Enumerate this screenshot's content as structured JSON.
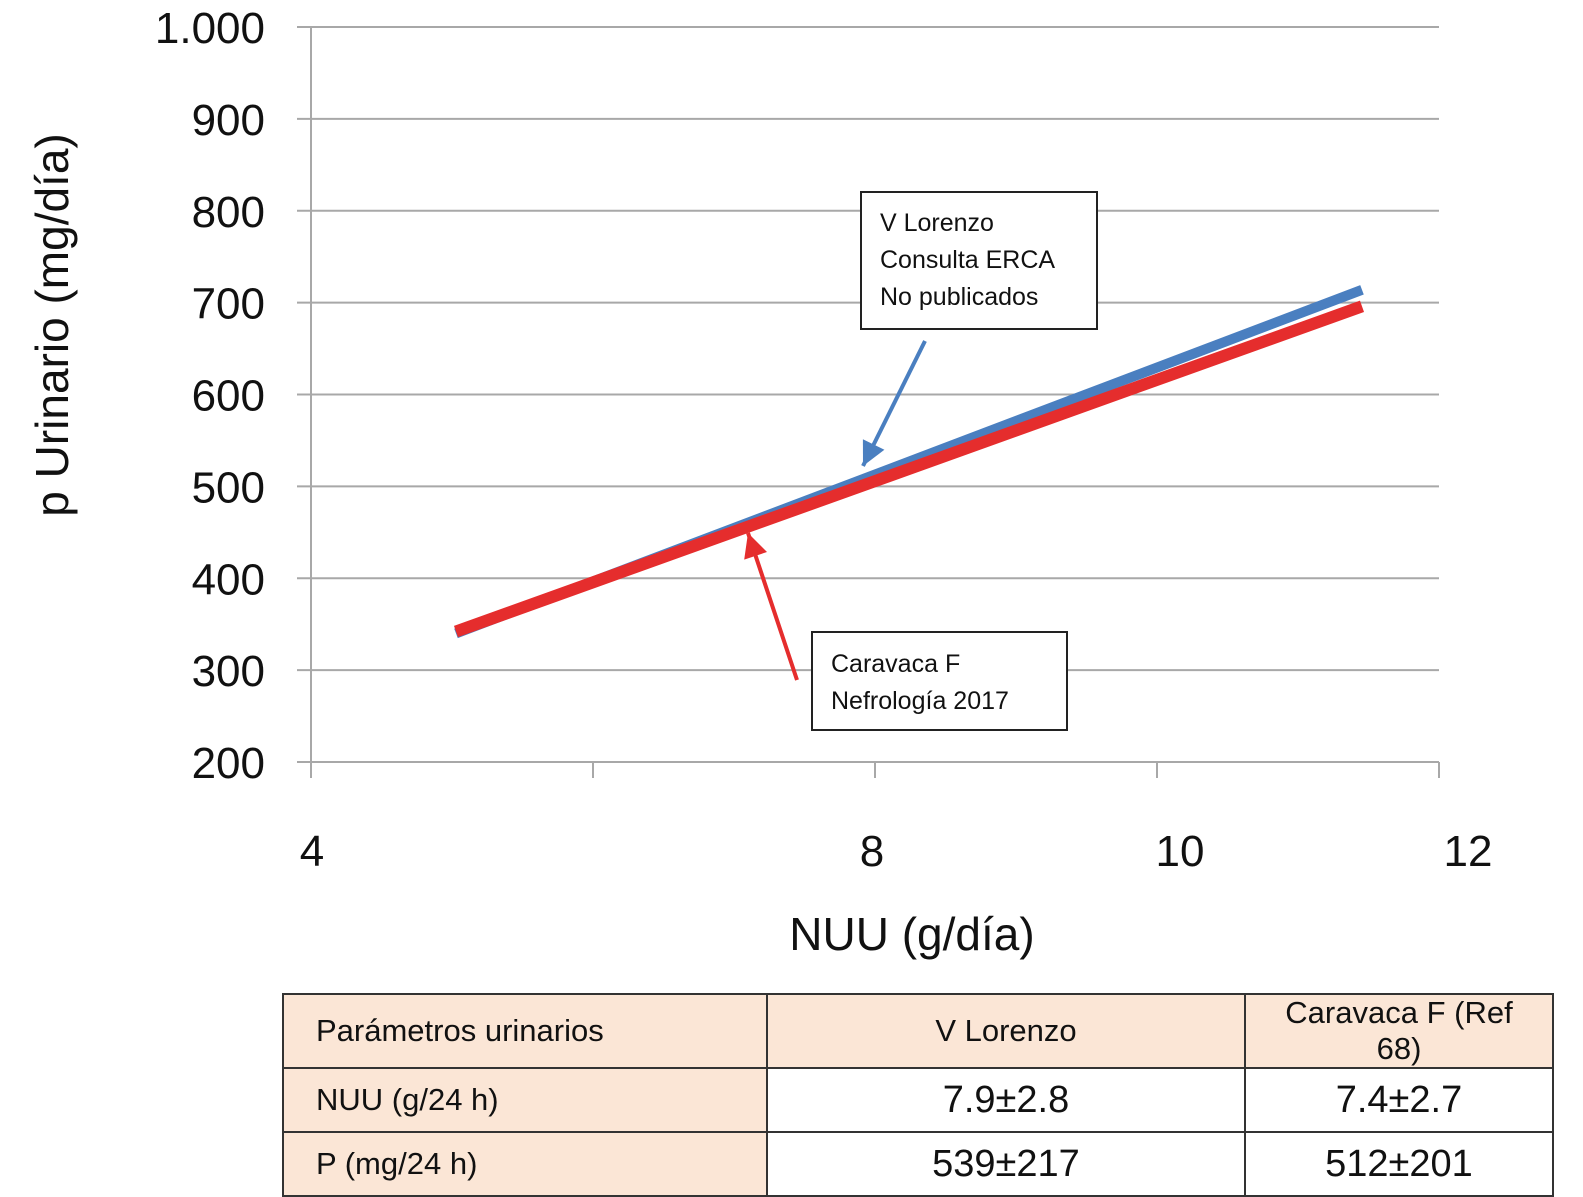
{
  "chart_data": {
    "type": "line",
    "xlabel": "NUU (g/día)",
    "ylabel": "p Urinario (mg/día)",
    "x_tick_labels": [
      "4",
      "8",
      "10",
      "12"
    ],
    "y_tick_labels": [
      "200",
      "300",
      "400",
      "500",
      "600",
      "700",
      "800",
      "900",
      "1.000"
    ],
    "ylim": [
      200,
      1000
    ],
    "grid": true,
    "series": [
      {
        "name": "V Lorenzo",
        "color": "#4a7fc0",
        "x": [
          5.0,
          11.0
        ],
        "y": [
          340,
          714
        ]
      },
      {
        "name": "Caravaca F",
        "color": "#e52d2d",
        "x": [
          5.0,
          11.0
        ],
        "y": [
          342,
          696
        ]
      }
    ],
    "annotations": [
      {
        "id": "lorenzo",
        "lines": [
          "V Lorenzo",
          "Consulta ERCA",
          "No publicados"
        ],
        "arrow_color": "#4a7fc0"
      },
      {
        "id": "caravaca",
        "lines": [
          "Caravaca F",
          "Nefrología 2017"
        ],
        "arrow_color": "#e52d2d"
      }
    ]
  },
  "table": {
    "headers": [
      "Parámetros urinarios",
      "V Lorenzo",
      "Caravaca F (Ref 68)"
    ],
    "rows": [
      {
        "label": "NUU (g/24 h)",
        "v1": "7.9±2.8",
        "v2": "7.4±2.7"
      },
      {
        "label": "P (mg/24 h)",
        "v1": "539±217",
        "v2": "512±201"
      }
    ]
  }
}
